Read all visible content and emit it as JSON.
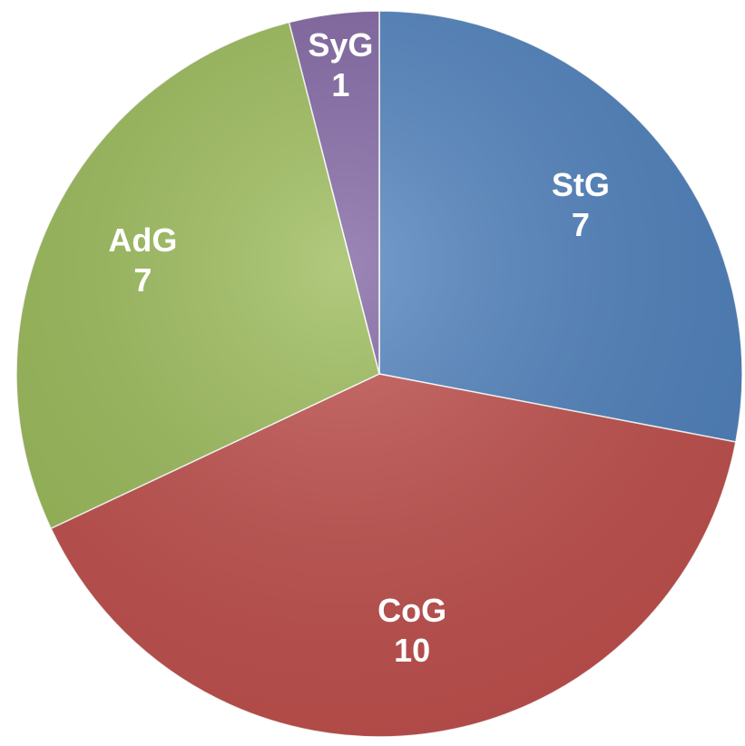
{
  "chart_data": {
    "type": "pie",
    "categories": [
      "StG",
      "CoG",
      "AdG",
      "SyG"
    ],
    "values": [
      7,
      10,
      7,
      1
    ],
    "colors": [
      "#4f81bd",
      "#c0504d",
      "#9bbb59",
      "#8064a2"
    ],
    "start_angle": 0,
    "direction": "clockwise"
  }
}
